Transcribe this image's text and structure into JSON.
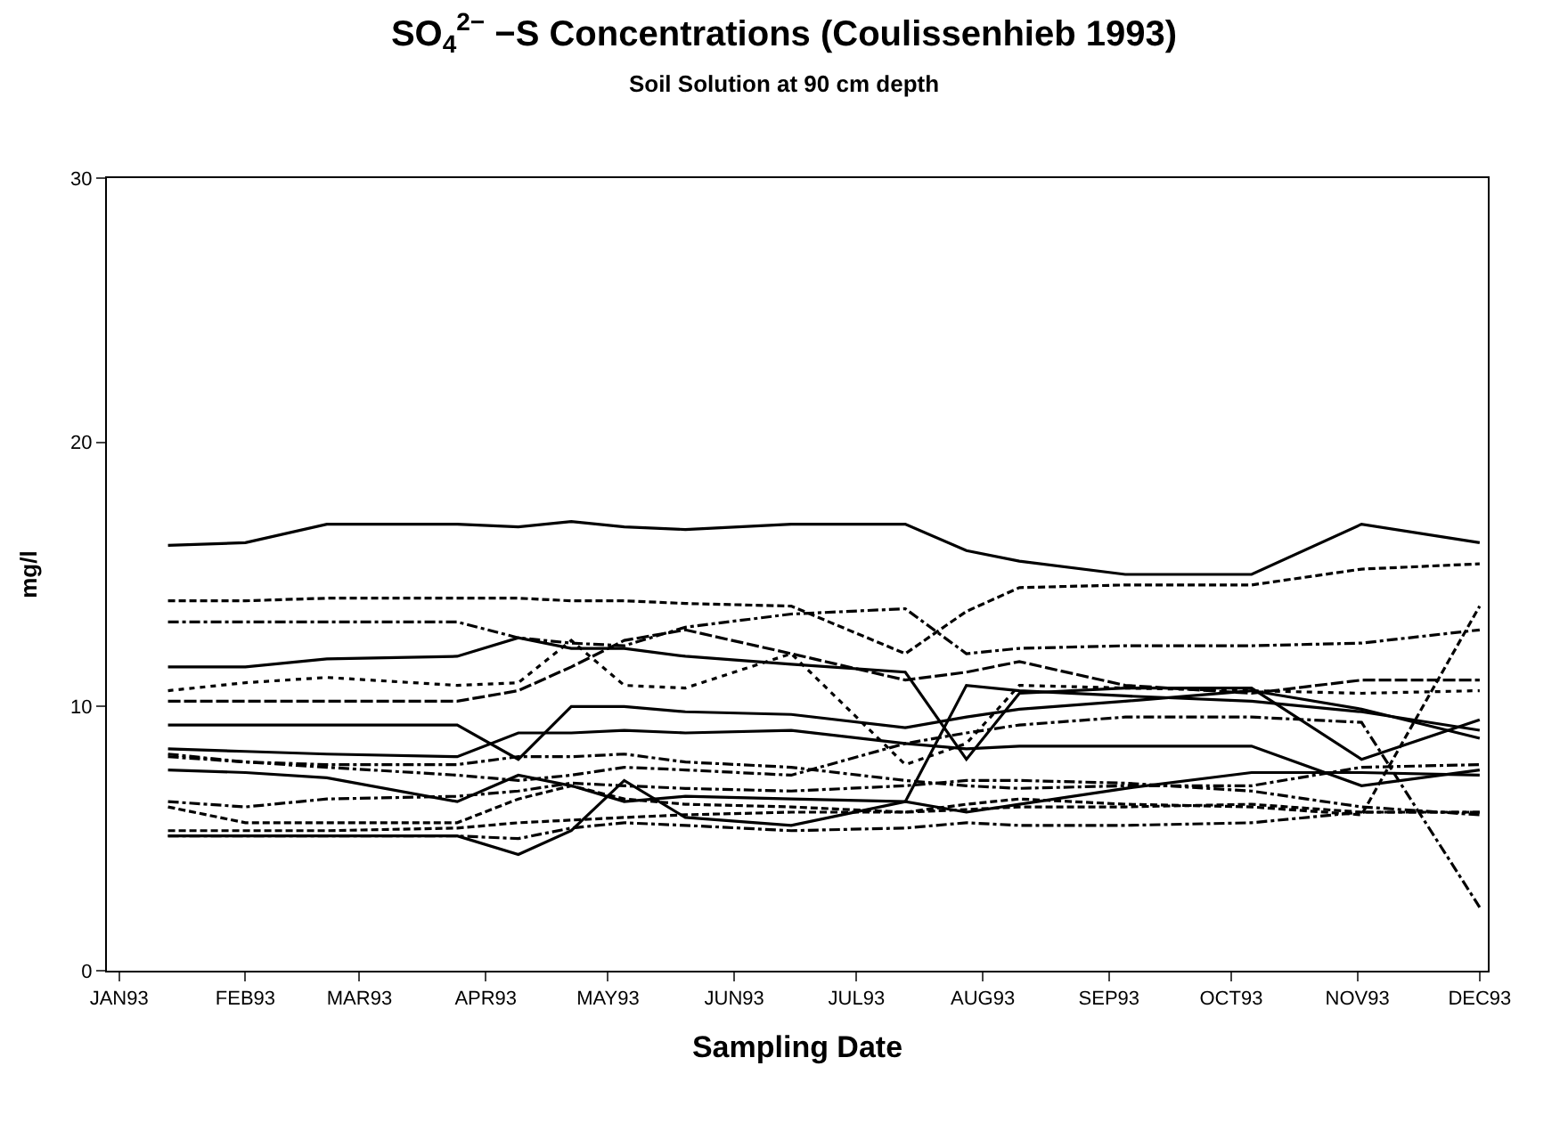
{
  "chart_data": {
    "type": "line",
    "title": "SO$_{4}$$^{2−}$ −S Concentrations (Coulissenhieb 1993)",
    "subtitle": "Soil Solution at 90 cm depth",
    "xlabel": "Sampling Date",
    "ylabel": "mg/l",
    "x": [
      "1993-01-13",
      "1993-02-01",
      "1993-02-21",
      "1993-03-25",
      "1993-04-09",
      "1993-04-22",
      "1993-05-05",
      "1993-05-20",
      "1993-06-15",
      "1993-07-13",
      "1993-07-28",
      "1993-08-10",
      "1993-09-05",
      "1993-10-06",
      "1993-11-02",
      "1993-12-01"
    ],
    "xlim": [
      "1992-12-29",
      "1993-12-03"
    ],
    "xticks": [
      {
        "value": "1993-01-01",
        "label": "JAN93"
      },
      {
        "value": "1993-02-01",
        "label": "FEB93"
      },
      {
        "value": "1993-03-01",
        "label": "MAR93"
      },
      {
        "value": "1993-04-01",
        "label": "APR93"
      },
      {
        "value": "1993-05-01",
        "label": "MAY93"
      },
      {
        "value": "1993-06-01",
        "label": "JUN93"
      },
      {
        "value": "1993-07-01",
        "label": "JUL93"
      },
      {
        "value": "1993-08-01",
        "label": "AUG93"
      },
      {
        "value": "1993-09-01",
        "label": "SEP93"
      },
      {
        "value": "1993-10-01",
        "label": "OCT93"
      },
      {
        "value": "1993-11-01",
        "label": "NOV93"
      },
      {
        "value": "1993-12-01",
        "label": "DEC93"
      }
    ],
    "ylim": [
      0,
      30
    ],
    "yticks": [
      0,
      10,
      20,
      30
    ],
    "series": [
      {
        "color": "#000000",
        "line_style": "solid",
        "values": [
          16.1,
          16.2,
          16.9,
          16.9,
          16.8,
          17.0,
          16.8,
          16.7,
          16.9,
          16.9,
          15.9,
          15.5,
          15.0,
          15.0,
          16.9,
          16.2
        ]
      },
      {
        "color": "#000000",
        "line_style": "dashed",
        "values": [
          14.0,
          14.0,
          14.1,
          14.1,
          14.1,
          14.0,
          14.0,
          13.9,
          13.8,
          12.0,
          13.6,
          14.5,
          14.6,
          14.6,
          15.2,
          15.4
        ]
      },
      {
        "color": "#000000",
        "line_style": "dashdot",
        "values": [
          13.2,
          13.2,
          13.2,
          13.2,
          12.6,
          12.4,
          12.3,
          13.0,
          13.5,
          13.7,
          12.0,
          12.2,
          12.3,
          12.3,
          12.4,
          12.9
        ]
      },
      {
        "color": "#000000",
        "line_style": "solid",
        "values": [
          11.5,
          11.5,
          11.8,
          11.9,
          12.6,
          12.2,
          12.2,
          11.9,
          11.6,
          11.3,
          8.0,
          10.5,
          10.7,
          10.7,
          8.0,
          9.5
        ]
      },
      {
        "color": "#000000",
        "line_style": "dotted",
        "values": [
          10.6,
          10.9,
          11.1,
          10.8,
          10.9,
          12.5,
          10.8,
          10.7,
          12.0,
          7.8,
          8.6,
          10.8,
          10.7,
          10.6,
          10.5,
          10.6
        ]
      },
      {
        "color": "#000000",
        "line_style": "longdash",
        "values": [
          10.2,
          10.2,
          10.2,
          10.2,
          10.6,
          11.5,
          12.5,
          12.9,
          12.0,
          11.0,
          11.3,
          11.7,
          10.8,
          10.5,
          11.0,
          11.0
        ]
      },
      {
        "color": "#000000",
        "line_style": "solid",
        "values": [
          9.3,
          9.3,
          9.3,
          9.3,
          8.0,
          10.0,
          10.0,
          9.8,
          9.7,
          9.2,
          9.6,
          9.9,
          10.2,
          10.6,
          9.9,
          8.8
        ]
      },
      {
        "color": "#000000",
        "line_style": "solid",
        "values": [
          8.4,
          8.3,
          8.2,
          8.1,
          9.0,
          9.0,
          9.1,
          9.0,
          9.1,
          8.6,
          8.4,
          8.5,
          8.5,
          8.5,
          7.0,
          7.6
        ]
      },
      {
        "color": "#000000",
        "line_style": "dashdot",
        "values": [
          8.1,
          7.9,
          7.8,
          7.8,
          8.1,
          8.1,
          8.2,
          7.9,
          7.7,
          7.2,
          7.0,
          6.9,
          7.0,
          7.0,
          7.7,
          7.8
        ]
      },
      {
        "color": "#000000",
        "line_style": "solid",
        "values": [
          7.6,
          7.5,
          7.3,
          6.4,
          7.4,
          7.0,
          6.4,
          6.6,
          6.5,
          6.4,
          10.8,
          10.6,
          10.4,
          10.2,
          9.8,
          9.1
        ]
      },
      {
        "color": "#000000",
        "line_style": "dashdot",
        "values": [
          6.4,
          6.2,
          6.5,
          6.6,
          6.8,
          7.1,
          7.0,
          6.9,
          6.8,
          7.0,
          7.2,
          7.2,
          7.1,
          6.8,
          6.2,
          5.9
        ]
      },
      {
        "color": "#000000",
        "line_style": "dashed",
        "values": [
          6.2,
          5.6,
          5.6,
          5.6,
          6.5,
          7.0,
          6.5,
          6.3,
          6.2,
          6.0,
          6.1,
          6.2,
          6.2,
          6.3,
          6.0,
          6.0
        ]
      },
      {
        "color": "#000000",
        "line_style": "solid",
        "values": [
          5.1,
          5.1,
          5.1,
          5.1,
          4.4,
          5.3,
          7.2,
          5.8,
          5.5,
          6.4,
          6.0,
          6.3,
          6.9,
          7.5,
          7.5,
          7.4
        ]
      },
      {
        "color": "#000000",
        "line_style": "dashdot",
        "values": [
          5.1,
          5.1,
          5.1,
          5.1,
          5.0,
          5.4,
          5.6,
          5.5,
          5.3,
          5.4,
          5.6,
          5.5,
          5.5,
          5.6,
          6.0,
          6.0
        ]
      },
      {
        "color": "#000000",
        "line_style": "dashed",
        "values": [
          5.3,
          5.3,
          5.3,
          5.4,
          5.6,
          5.7,
          5.8,
          5.9,
          6.0,
          6.0,
          6.3,
          6.5,
          6.3,
          6.2,
          5.9,
          13.8
        ]
      },
      {
        "color": "#000000",
        "line_style": "dashdot",
        "values": [
          8.2,
          7.9,
          7.7,
          7.4,
          7.2,
          7.4,
          7.7,
          7.6,
          7.4,
          8.6,
          9.0,
          9.3,
          9.6,
          9.6,
          9.4,
          2.4
        ]
      }
    ]
  }
}
